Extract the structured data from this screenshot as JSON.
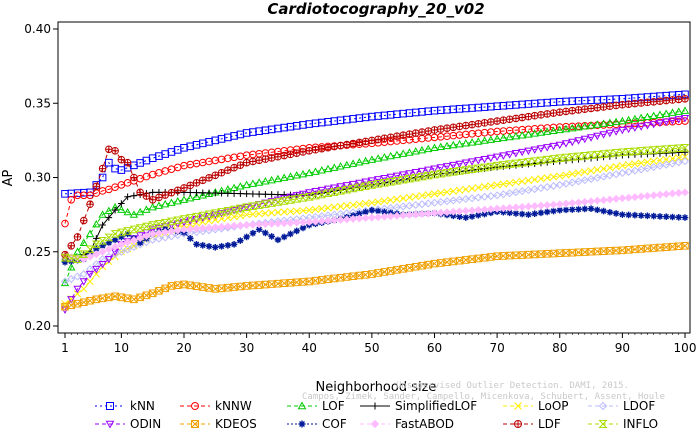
{
  "chart_data": {
    "type": "line",
    "title": "Cardiotocography_20_v02",
    "xlabel": "Neighborhood size",
    "ylabel": "AP",
    "xlim": [
      1,
      100
    ],
    "ylim": [
      0.2,
      0.4
    ],
    "xticks": [
      "1",
      "10",
      "20",
      "30",
      "40",
      "50",
      "60",
      "70",
      "80",
      "90",
      "100"
    ],
    "yticks": [
      "0.20",
      "0.25",
      "0.30",
      "0.35",
      "0.40"
    ],
    "grid": false,
    "legend_position": "bottom",
    "series": [
      {
        "name": "kNN",
        "color": "#0000ff",
        "dash": "2,3",
        "marker": "square",
        "points": [
          [
            1,
            0.289
          ],
          [
            5,
            0.29
          ],
          [
            7,
            0.3
          ],
          [
            8,
            0.31
          ],
          [
            9,
            0.306
          ],
          [
            10,
            0.305
          ],
          [
            15,
            0.313
          ],
          [
            20,
            0.32
          ],
          [
            30,
            0.33
          ],
          [
            40,
            0.336
          ],
          [
            50,
            0.341
          ],
          [
            60,
            0.345
          ],
          [
            70,
            0.348
          ],
          [
            80,
            0.351
          ],
          [
            90,
            0.353
          ],
          [
            100,
            0.356
          ]
        ]
      },
      {
        "name": "kNNW",
        "color": "#ff0000",
        "dash": "4,3",
        "marker": "circle",
        "points": [
          [
            1,
            0.269
          ],
          [
            2,
            0.285
          ],
          [
            3,
            0.288
          ],
          [
            5,
            0.288
          ],
          [
            7,
            0.291
          ],
          [
            8,
            0.292
          ],
          [
            10,
            0.295
          ],
          [
            15,
            0.302
          ],
          [
            20,
            0.308
          ],
          [
            30,
            0.315
          ],
          [
            40,
            0.32
          ],
          [
            50,
            0.323
          ],
          [
            60,
            0.327
          ],
          [
            70,
            0.331
          ],
          [
            80,
            0.334
          ],
          [
            90,
            0.336
          ],
          [
            100,
            0.338
          ]
        ]
      },
      {
        "name": "LOF",
        "color": "#00cc00",
        "dash": "4,3",
        "marker": "triangle",
        "points": [
          [
            1,
            0.229
          ],
          [
            3,
            0.25
          ],
          [
            5,
            0.262
          ],
          [
            7,
            0.275
          ],
          [
            9,
            0.28
          ],
          [
            12,
            0.275
          ],
          [
            15,
            0.28
          ],
          [
            20,
            0.285
          ],
          [
            30,
            0.295
          ],
          [
            40,
            0.303
          ],
          [
            50,
            0.312
          ],
          [
            60,
            0.32
          ],
          [
            70,
            0.326
          ],
          [
            80,
            0.332
          ],
          [
            90,
            0.338
          ],
          [
            100,
            0.345
          ]
        ]
      },
      {
        "name": "SimplifiedLOF",
        "color": "#000000",
        "dash": "",
        "marker": "plus",
        "points": [
          [
            1,
            0.245
          ],
          [
            3,
            0.246
          ],
          [
            5,
            0.25
          ],
          [
            7,
            0.268
          ],
          [
            9,
            0.278
          ],
          [
            11,
            0.287
          ],
          [
            15,
            0.29
          ],
          [
            20,
            0.29
          ],
          [
            30,
            0.289
          ],
          [
            40,
            0.288
          ],
          [
            50,
            0.295
          ],
          [
            60,
            0.302
          ],
          [
            70,
            0.307
          ],
          [
            80,
            0.311
          ],
          [
            90,
            0.315
          ],
          [
            100,
            0.317
          ]
        ]
      },
      {
        "name": "LoOP",
        "color": "#ffee00",
        "dash": "4,3",
        "marker": "x",
        "points": [
          [
            1,
            0.215
          ],
          [
            4,
            0.225
          ],
          [
            7,
            0.24
          ],
          [
            10,
            0.25
          ],
          [
            15,
            0.26
          ],
          [
            20,
            0.268
          ],
          [
            30,
            0.275
          ],
          [
            40,
            0.278
          ],
          [
            50,
            0.283
          ],
          [
            60,
            0.289
          ],
          [
            70,
            0.295
          ],
          [
            80,
            0.301
          ],
          [
            90,
            0.308
          ],
          [
            100,
            0.314
          ]
        ]
      },
      {
        "name": "LDOF",
        "color": "#bbbbff",
        "dash": "4,3",
        "marker": "diamond",
        "points": [
          [
            1,
            0.23
          ],
          [
            4,
            0.235
          ],
          [
            7,
            0.245
          ],
          [
            10,
            0.25
          ],
          [
            15,
            0.258
          ],
          [
            20,
            0.262
          ],
          [
            30,
            0.268
          ],
          [
            40,
            0.273
          ],
          [
            50,
            0.278
          ],
          [
            60,
            0.283
          ],
          [
            70,
            0.288
          ],
          [
            80,
            0.295
          ],
          [
            90,
            0.303
          ],
          [
            100,
            0.311
          ]
        ]
      },
      {
        "name": "ODIN",
        "color": "#9900ff",
        "dash": "4,3",
        "marker": "triangle-down",
        "points": [
          [
            1,
            0.211
          ],
          [
            3,
            0.225
          ],
          [
            5,
            0.235
          ],
          [
            8,
            0.245
          ],
          [
            10,
            0.255
          ],
          [
            15,
            0.265
          ],
          [
            20,
            0.27
          ],
          [
            30,
            0.28
          ],
          [
            40,
            0.29
          ],
          [
            50,
            0.298
          ],
          [
            60,
            0.306
          ],
          [
            70,
            0.314
          ],
          [
            80,
            0.322
          ],
          [
            90,
            0.332
          ],
          [
            100,
            0.34
          ]
        ]
      },
      {
        "name": "KDEOS",
        "color": "#f0a000",
        "dash": "4,3",
        "marker": "square-x",
        "points": [
          [
            1,
            0.213
          ],
          [
            3,
            0.215
          ],
          [
            6,
            0.218
          ],
          [
            9,
            0.22
          ],
          [
            12,
            0.218
          ],
          [
            15,
            0.222
          ],
          [
            18,
            0.227
          ],
          [
            20,
            0.228
          ],
          [
            25,
            0.225
          ],
          [
            30,
            0.227
          ],
          [
            40,
            0.23
          ],
          [
            50,
            0.235
          ],
          [
            60,
            0.242
          ],
          [
            70,
            0.247
          ],
          [
            80,
            0.249
          ],
          [
            90,
            0.251
          ],
          [
            100,
            0.254
          ]
        ]
      },
      {
        "name": "COF",
        "color": "#001a99",
        "dash": "2,2",
        "marker": "star",
        "points": [
          [
            1,
            0.243
          ],
          [
            4,
            0.245
          ],
          [
            6,
            0.252
          ],
          [
            9,
            0.258
          ],
          [
            11,
            0.262
          ],
          [
            13,
            0.256
          ],
          [
            15,
            0.262
          ],
          [
            17,
            0.265
          ],
          [
            20,
            0.263
          ],
          [
            22,
            0.255
          ],
          [
            25,
            0.253
          ],
          [
            28,
            0.255
          ],
          [
            32,
            0.265
          ],
          [
            35,
            0.258
          ],
          [
            40,
            0.268
          ],
          [
            45,
            0.272
          ],
          [
            50,
            0.278
          ],
          [
            55,
            0.275
          ],
          [
            60,
            0.276
          ],
          [
            65,
            0.273
          ],
          [
            70,
            0.277
          ],
          [
            75,
            0.275
          ],
          [
            80,
            0.278
          ],
          [
            85,
            0.279
          ],
          [
            90,
            0.275
          ],
          [
            95,
            0.274
          ],
          [
            100,
            0.273
          ]
        ]
      },
      {
        "name": "FastABOD",
        "color": "#ffbbff",
        "dash": "4,3",
        "marker": "diamond-fill",
        "points": [
          [
            1,
            0.247
          ],
          [
            4,
            0.245
          ],
          [
            7,
            0.25
          ],
          [
            10,
            0.255
          ],
          [
            15,
            0.262
          ],
          [
            20,
            0.265
          ],
          [
            30,
            0.268
          ],
          [
            40,
            0.27
          ],
          [
            50,
            0.273
          ],
          [
            60,
            0.276
          ],
          [
            70,
            0.279
          ],
          [
            80,
            0.282
          ],
          [
            90,
            0.286
          ],
          [
            100,
            0.29
          ]
        ]
      },
      {
        "name": "LDF",
        "color": "#bb0000",
        "dash": "4,3",
        "marker": "circle-plus",
        "points": [
          [
            1,
            0.248
          ],
          [
            3,
            0.26
          ],
          [
            5,
            0.282
          ],
          [
            7,
            0.306
          ],
          [
            8,
            0.319
          ],
          [
            9,
            0.318
          ],
          [
            10,
            0.312
          ],
          [
            11,
            0.31
          ],
          [
            13,
            0.29
          ],
          [
            15,
            0.285
          ],
          [
            20,
            0.293
          ],
          [
            30,
            0.31
          ],
          [
            40,
            0.318
          ],
          [
            50,
            0.325
          ],
          [
            60,
            0.332
          ],
          [
            70,
            0.338
          ],
          [
            80,
            0.344
          ],
          [
            90,
            0.349
          ],
          [
            100,
            0.353
          ]
        ]
      },
      {
        "name": "INFLO",
        "color": "#aadd00",
        "dash": "4,3",
        "marker": "hourglass",
        "points": [
          [
            1,
            0.246
          ],
          [
            3,
            0.245
          ],
          [
            6,
            0.255
          ],
          [
            9,
            0.262
          ],
          [
            12,
            0.265
          ],
          [
            15,
            0.268
          ],
          [
            20,
            0.272
          ],
          [
            30,
            0.28
          ],
          [
            40,
            0.287
          ],
          [
            50,
            0.295
          ],
          [
            60,
            0.302
          ],
          [
            70,
            0.308
          ],
          [
            80,
            0.313
          ],
          [
            90,
            0.317
          ],
          [
            100,
            0.32
          ]
        ]
      }
    ],
    "watermark": [
      "Unsupervised Outlier Detection. DAMI, 2015.",
      "Campos, Zimek, Sander, Campello, Micenkova, Schubert, Assent, Houle"
    ]
  }
}
